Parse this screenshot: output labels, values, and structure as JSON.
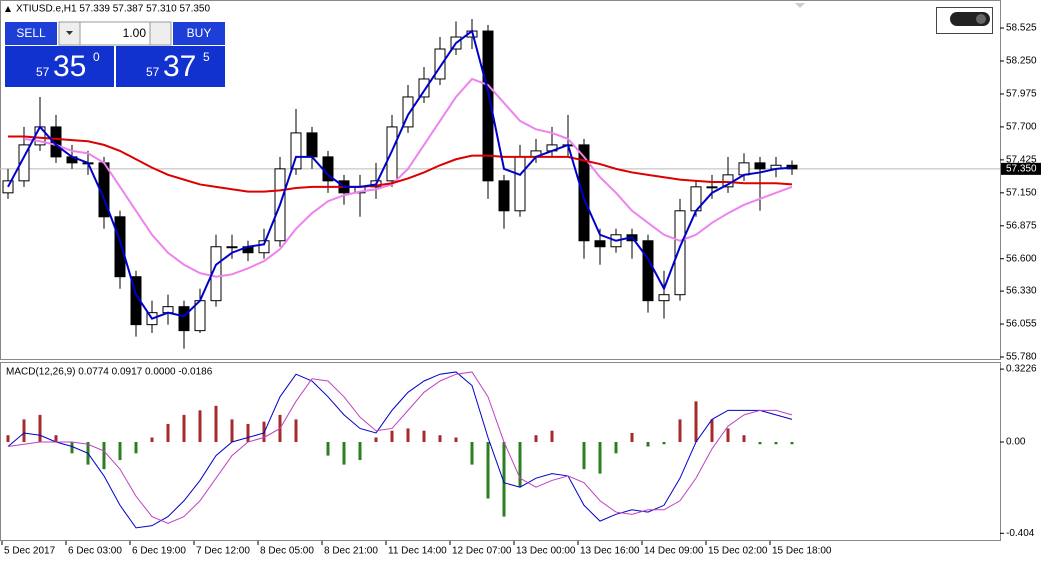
{
  "trade_panel": {
    "sell": "SELL",
    "buy": "BUY",
    "volume": "1.00",
    "bid": {
      "big": "57",
      "main": "35",
      "sup": "0"
    },
    "ask": {
      "big": "57",
      "main": "37",
      "sup": "5"
    }
  },
  "chart_data": [
    {
      "type": "candlestick",
      "title": "XTIUSD.e,H1  57.339 57.387 57.310 57.350",
      "categories": [
        "5 Dec 2017",
        null,
        null,
        null,
        "6 Dec 03:00",
        null,
        null,
        null,
        "6 Dec 19:00",
        null,
        null,
        null,
        "7 Dec 12:00",
        null,
        null,
        null,
        "8 Dec 05:00",
        null,
        null,
        null,
        "8 Dec 21:00",
        null,
        null,
        null,
        "11 Dec 14:00",
        null,
        null,
        null,
        "12 Dec 07:00",
        null,
        null,
        null,
        "13 Dec 00:00",
        null,
        null,
        null,
        "13 Dec 16:00",
        null,
        null,
        null,
        "14 Dec 09:00",
        null,
        null,
        null,
        "15 Dec 02:00",
        null,
        null,
        null,
        "15 Dec 18:00",
        null
      ],
      "open": [
        57.15,
        57.25,
        57.55,
        57.7,
        57.45,
        57.4,
        57.4,
        56.95,
        56.45,
        56.05,
        56.15,
        56.2,
        56.0,
        56.25,
        56.7,
        56.7,
        56.65,
        56.75,
        57.35,
        57.65,
        57.45,
        57.25,
        57.15,
        57.2,
        57.25,
        57.7,
        57.95,
        58.1,
        58.35,
        58.45,
        58.5,
        57.25,
        57.0,
        57.45,
        57.5,
        57.55,
        57.55,
        56.75,
        56.7,
        56.8,
        56.75,
        56.25,
        56.3,
        57.0,
        57.2,
        57.2,
        57.3,
        57.4,
        57.35,
        57.38
      ],
      "high": [
        57.35,
        57.7,
        57.95,
        57.8,
        57.55,
        57.5,
        57.45,
        57.0,
        56.5,
        56.25,
        56.3,
        56.25,
        56.35,
        56.8,
        56.8,
        56.75,
        56.85,
        57.45,
        57.85,
        57.7,
        57.5,
        57.3,
        57.3,
        57.4,
        57.8,
        58.05,
        58.2,
        58.45,
        58.58,
        58.6,
        58.55,
        57.3,
        57.55,
        57.6,
        57.7,
        57.8,
        57.6,
        56.85,
        56.85,
        56.85,
        56.8,
        56.5,
        57.1,
        57.25,
        57.3,
        57.45,
        57.48,
        57.45,
        57.45,
        57.42
      ],
      "low": [
        57.1,
        57.2,
        57.5,
        57.4,
        57.35,
        57.3,
        56.85,
        56.35,
        55.95,
        55.98,
        56.05,
        55.85,
        55.98,
        56.2,
        56.6,
        56.58,
        56.6,
        56.7,
        57.3,
        57.35,
        57.15,
        57.05,
        56.95,
        57.1,
        57.2,
        57.65,
        57.9,
        58.05,
        58.3,
        58.35,
        57.1,
        56.85,
        56.95,
        57.4,
        57.45,
        57.45,
        56.6,
        56.55,
        56.65,
        56.6,
        56.15,
        56.1,
        56.25,
        56.95,
        57.1,
        57.15,
        57.25,
        57.0,
        57.28,
        57.3
      ],
      "close": [
        57.25,
        57.55,
        57.7,
        57.45,
        57.4,
        57.4,
        56.95,
        56.45,
        56.05,
        56.15,
        56.2,
        56.0,
        56.25,
        56.7,
        56.7,
        56.65,
        56.75,
        57.35,
        57.65,
        57.45,
        57.25,
        57.15,
        57.2,
        57.25,
        57.7,
        57.95,
        58.1,
        58.35,
        58.45,
        58.5,
        57.25,
        57.0,
        57.45,
        57.5,
        57.55,
        57.55,
        56.75,
        56.7,
        56.8,
        56.75,
        56.25,
        56.3,
        57.0,
        57.2,
        57.2,
        57.3,
        57.4,
        57.35,
        57.38,
        57.35
      ],
      "up_color": "#ffffff",
      "down_color": "#000000",
      "overlays": [
        {
          "color": "#ee82ee",
          "values": [
            null,
            57.6,
            57.58,
            57.55,
            57.5,
            57.48,
            57.4,
            57.2,
            57.0,
            56.8,
            56.65,
            56.55,
            56.48,
            56.45,
            56.47,
            56.52,
            56.58,
            56.68,
            56.85,
            56.98,
            57.08,
            57.13,
            57.16,
            57.18,
            57.22,
            57.35,
            57.55,
            57.75,
            57.95,
            58.1,
            58.05,
            57.9,
            57.75,
            57.68,
            57.65,
            57.6,
            57.45,
            57.28,
            57.15,
            57.0,
            56.9,
            56.8,
            56.75,
            56.8,
            56.9,
            56.98,
            57.05,
            57.1,
            57.15,
            57.2
          ]
        },
        {
          "color": "#dd0000",
          "values": [
            57.62,
            57.62,
            57.61,
            57.6,
            57.59,
            57.58,
            57.55,
            57.5,
            57.43,
            57.36,
            57.3,
            57.26,
            57.22,
            57.2,
            57.18,
            57.16,
            57.16,
            57.17,
            57.19,
            57.2,
            57.2,
            57.2,
            57.2,
            57.21,
            57.23,
            57.27,
            57.32,
            57.38,
            57.43,
            57.46,
            57.46,
            57.45,
            57.45,
            57.45,
            57.45,
            57.45,
            57.42,
            57.39,
            57.35,
            57.32,
            57.3,
            57.28,
            57.26,
            57.25,
            57.24,
            57.24,
            57.23,
            57.23,
            57.23,
            57.22
          ]
        },
        {
          "color": "#0000cc",
          "values": [
            57.2,
            57.45,
            57.7,
            57.55,
            57.45,
            57.4,
            57.1,
            56.75,
            56.3,
            56.1,
            56.15,
            56.12,
            56.25,
            56.55,
            56.65,
            56.7,
            56.72,
            57.05,
            57.45,
            57.45,
            57.3,
            57.2,
            57.2,
            57.22,
            57.5,
            57.8,
            58.0,
            58.2,
            58.4,
            58.5,
            58.0,
            57.35,
            57.3,
            57.45,
            57.5,
            57.55,
            57.1,
            56.8,
            56.75,
            56.78,
            56.6,
            56.35,
            56.7,
            57.0,
            57.15,
            57.22,
            57.3,
            57.32,
            57.35,
            57.36
          ]
        }
      ],
      "last_price": {
        "value": 57.35,
        "label": "57.350"
      },
      "ylim": [
        55.755,
        58.759
      ],
      "yticks": [
        58.525,
        {
          "value": 58.25,
          "label": "58.250"
        },
        57.975,
        {
          "value": 57.7,
          "label": "57.700"
        },
        57.425,
        {
          "value": 57.15,
          "label": "57.150"
        },
        56.875,
        {
          "value": 56.6,
          "label": "56.600"
        },
        {
          "value": 56.33,
          "label": "56.330"
        },
        56.055,
        {
          "value": 55.78,
          "label": "55.780"
        }
      ]
    },
    {
      "type": "macd",
      "title": "MACD(12,26,9) 0.0774 0.0917 0.0000 -0.0186",
      "histogram": {
        "pos_color": "#a52a2a",
        "neg_color": "#2e7d22",
        "values": [
          0.03,
          0.1,
          0.12,
          0.03,
          -0.05,
          -0.1,
          -0.12,
          -0.08,
          -0.05,
          0.02,
          0.08,
          0.12,
          0.14,
          0.16,
          0.1,
          0.08,
          0.09,
          0.12,
          0.1,
          0.0,
          -0.06,
          -0.1,
          -0.08,
          0.02,
          0.05,
          0.06,
          0.05,
          0.03,
          0.02,
          -0.1,
          -0.25,
          -0.33,
          -0.2,
          0.03,
          0.05,
          0.0,
          -0.12,
          -0.14,
          -0.05,
          0.04,
          -0.02,
          -0.01,
          0.1,
          0.18,
          0.1,
          0.06,
          0.03,
          -0.01,
          -0.01,
          -0.01
        ]
      },
      "lines": [
        {
          "color": "#0000cc",
          "values": [
            -0.02,
            0.04,
            0.03,
            0.0,
            -0.02,
            -0.05,
            -0.15,
            -0.28,
            -0.38,
            -0.37,
            -0.33,
            -0.26,
            -0.17,
            -0.06,
            0.0,
            0.02,
            0.04,
            0.2,
            0.3,
            0.27,
            0.2,
            0.12,
            0.06,
            0.04,
            0.14,
            0.22,
            0.27,
            0.3,
            0.31,
            0.25,
            0.02,
            -0.18,
            -0.2,
            -0.16,
            -0.14,
            -0.15,
            -0.28,
            -0.35,
            -0.32,
            -0.3,
            -0.31,
            -0.28,
            -0.16,
            0.0,
            0.1,
            0.14,
            0.14,
            0.14,
            0.12,
            0.1
          ]
        },
        {
          "color": "#c040c0",
          "values": [
            -0.02,
            -0.01,
            0.0,
            0.0,
            0.0,
            -0.01,
            -0.04,
            -0.12,
            -0.24,
            -0.33,
            -0.36,
            -0.33,
            -0.26,
            -0.16,
            -0.06,
            0.0,
            0.02,
            0.06,
            0.18,
            0.28,
            0.27,
            0.2,
            0.11,
            0.05,
            0.06,
            0.14,
            0.22,
            0.27,
            0.3,
            0.31,
            0.2,
            0.0,
            -0.16,
            -0.2,
            -0.17,
            -0.15,
            -0.18,
            -0.26,
            -0.31,
            -0.32,
            -0.3,
            -0.3,
            -0.26,
            -0.16,
            -0.03,
            0.07,
            0.12,
            0.14,
            0.14,
            0.12
          ]
        }
      ],
      "ylim": [
        -0.4336,
        0.3496
      ],
      "yticks": [
        0.3226,
        {
          "value": 0,
          "label": "0.00"
        },
        -0.404
      ]
    }
  ]
}
